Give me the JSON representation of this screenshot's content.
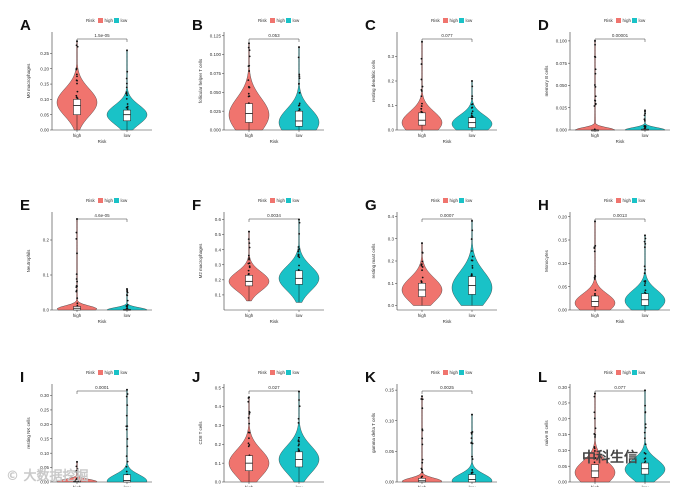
{
  "colors": {
    "high": "#F0746E",
    "low": "#19C2C7",
    "stroke": "#333333",
    "box": "#ffffff"
  },
  "legend": {
    "title": "Risk",
    "items": [
      "high",
      "low"
    ]
  },
  "xlabel": "Risk",
  "watermark_left": "© 大数据挖掘",
  "watermark_right": "中科生信",
  "chart_data": [
    {
      "type": "violin",
      "panel": "A",
      "ylabel": "M0 macrophages",
      "pvalue": "1.5e-05",
      "categories": [
        "high",
        "low"
      ],
      "ylim": [
        0,
        0.32
      ],
      "ticks": [
        0,
        0.05,
        0.1,
        0.15,
        0.2,
        0.25
      ],
      "tick_labels": [
        "0.00",
        "0.05",
        "0.10",
        "0.15",
        "0.20",
        "0.25"
      ],
      "series": [
        {
          "name": "high",
          "min": 0,
          "q1": 0.05,
          "median": 0.08,
          "q3": 0.1,
          "max": 0.29,
          "mode": 0.09
        },
        {
          "name": "low",
          "min": 0,
          "q1": 0.03,
          "median": 0.05,
          "q3": 0.065,
          "max": 0.26,
          "mode": 0.05
        }
      ]
    },
    {
      "type": "violin",
      "panel": "B",
      "ylabel": "follicular helper T cells",
      "pvalue": "0.053",
      "categories": [
        "high",
        "low"
      ],
      "ylim": [
        0,
        0.13
      ],
      "ticks": [
        0,
        0.025,
        0.05,
        0.075,
        0.1,
        0.125
      ],
      "tick_labels": [
        "0.000",
        "0.025",
        "0.050",
        "0.075",
        "0.100",
        "0.125"
      ],
      "series": [
        {
          "name": "high",
          "min": 0,
          "q1": 0.01,
          "median": 0.022,
          "q3": 0.035,
          "max": 0.115,
          "mode": 0.02
        },
        {
          "name": "low",
          "min": 0,
          "q1": 0.005,
          "median": 0.012,
          "q3": 0.025,
          "max": 0.11,
          "mode": 0.01
        }
      ]
    },
    {
      "type": "violin",
      "panel": "C",
      "ylabel": "resting dendritic cells",
      "pvalue": "0.077",
      "categories": [
        "high",
        "low"
      ],
      "ylim": [
        0,
        0.4
      ],
      "ticks": [
        0,
        0.1,
        0.2,
        0.3
      ],
      "tick_labels": [
        "0.0",
        "0.1",
        "0.2",
        "0.3"
      ],
      "series": [
        {
          "name": "high",
          "min": 0,
          "q1": 0.02,
          "median": 0.04,
          "q3": 0.07,
          "max": 0.36,
          "mode": 0.03
        },
        {
          "name": "low",
          "min": 0,
          "q1": 0.01,
          "median": 0.03,
          "q3": 0.05,
          "max": 0.2,
          "mode": 0.025
        }
      ]
    },
    {
      "type": "violin",
      "panel": "D",
      "ylabel": "memory B cells",
      "pvalue": "0.00001",
      "categories": [
        "high",
        "low"
      ],
      "ylim": [
        0,
        0.11
      ],
      "ticks": [
        0,
        0.025,
        0.05,
        0.075,
        0.1
      ],
      "tick_labels": [
        "0.000",
        "0.025",
        "0.050",
        "0.075",
        "0.100"
      ],
      "series": [
        {
          "name": "high",
          "min": 0,
          "q1": 0,
          "median": 0,
          "q3": 0,
          "max": 0.1,
          "mode": 0
        },
        {
          "name": "low",
          "min": 0,
          "q1": 0,
          "median": 0,
          "q3": 0.001,
          "max": 0.022,
          "mode": 0
        }
      ]
    },
    {
      "type": "violin",
      "panel": "E",
      "ylabel": "Neutrophils",
      "pvalue": "4.6e-05",
      "categories": [
        "high",
        "low"
      ],
      "ylim": [
        0,
        0.28
      ],
      "ticks": [
        0,
        0.1,
        0.2
      ],
      "tick_labels": [
        "0.0",
        "0.1",
        "0.2"
      ],
      "series": [
        {
          "name": "high",
          "min": 0,
          "q1": 0,
          "median": 0.005,
          "q3": 0.01,
          "max": 0.26,
          "mode": 0.003
        },
        {
          "name": "low",
          "min": 0,
          "q1": 0,
          "median": 0,
          "q3": 0.002,
          "max": 0.06,
          "mode": 0
        }
      ]
    },
    {
      "type": "violin",
      "panel": "F",
      "ylabel": "M2 macrophages",
      "pvalue": "0.0034",
      "categories": [
        "high",
        "low"
      ],
      "ylim": [
        0,
        0.65
      ],
      "ticks": [
        0.1,
        0.2,
        0.3,
        0.4,
        0.5,
        0.6
      ],
      "tick_labels": [
        "0.1",
        "0.2",
        "0.3",
        "0.4",
        "0.5",
        "0.6"
      ],
      "series": [
        {
          "name": "high",
          "min": 0.06,
          "q1": 0.16,
          "median": 0.19,
          "q3": 0.23,
          "max": 0.52,
          "mode": 0.19
        },
        {
          "name": "low",
          "min": 0.05,
          "q1": 0.17,
          "median": 0.21,
          "q3": 0.26,
          "max": 0.6,
          "mode": 0.21
        }
      ]
    },
    {
      "type": "violin",
      "panel": "G",
      "ylabel": "resting mast cells",
      "pvalue": "0.0007",
      "categories": [
        "high",
        "low"
      ],
      "ylim": [
        -0.02,
        0.42
      ],
      "ticks": [
        0,
        0.1,
        0.2,
        0.3,
        0.4
      ],
      "tick_labels": [
        "0.0",
        "0.1",
        "0.2",
        "0.3",
        "0.4"
      ],
      "series": [
        {
          "name": "high",
          "min": 0,
          "q1": 0.04,
          "median": 0.07,
          "q3": 0.1,
          "max": 0.28,
          "mode": 0.07
        },
        {
          "name": "low",
          "min": 0,
          "q1": 0.05,
          "median": 0.09,
          "q3": 0.13,
          "max": 0.38,
          "mode": 0.08
        }
      ]
    },
    {
      "type": "violin",
      "panel": "H",
      "ylabel": "Monocytes",
      "pvalue": "0.0013",
      "categories": [
        "high",
        "low"
      ],
      "ylim": [
        0,
        0.21
      ],
      "ticks": [
        0,
        0.05,
        0.1,
        0.15,
        0.2
      ],
      "tick_labels": [
        "0.00",
        "0.05",
        "0.10",
        "0.15",
        "0.20"
      ],
      "series": [
        {
          "name": "high",
          "min": 0,
          "q1": 0.008,
          "median": 0.018,
          "q3": 0.03,
          "max": 0.19,
          "mode": 0.015
        },
        {
          "name": "low",
          "min": 0,
          "q1": 0.01,
          "median": 0.022,
          "q3": 0.035,
          "max": 0.16,
          "mode": 0.02
        }
      ]
    },
    {
      "type": "violin",
      "panel": "I",
      "ylabel": "resting NK cells",
      "pvalue": "0.0001",
      "categories": [
        "high",
        "low"
      ],
      "ylim": [
        0,
        0.34
      ],
      "ticks": [
        0,
        0.05,
        0.1,
        0.15,
        0.2,
        0.25,
        0.3
      ],
      "tick_labels": [
        "0.00",
        "0.05",
        "0.10",
        "0.15",
        "0.20",
        "0.25",
        "0.30"
      ],
      "series": [
        {
          "name": "high",
          "min": 0,
          "q1": 0,
          "median": 0.002,
          "q3": 0.005,
          "max": 0.07,
          "mode": 0.001
        },
        {
          "name": "low",
          "min": 0,
          "q1": 0,
          "median": 0.005,
          "q3": 0.025,
          "max": 0.32,
          "mode": 0.003
        }
      ]
    },
    {
      "type": "violin",
      "panel": "J",
      "ylabel": "CD8 T cells",
      "pvalue": "0.027",
      "categories": [
        "high",
        "low"
      ],
      "ylim": [
        0,
        0.52
      ],
      "ticks": [
        0,
        0.1,
        0.2,
        0.3,
        0.4,
        0.5
      ],
      "tick_labels": [
        "0.0",
        "0.1",
        "0.2",
        "0.3",
        "0.4",
        "0.5"
      ],
      "series": [
        {
          "name": "high",
          "min": 0,
          "q1": 0.06,
          "median": 0.1,
          "q3": 0.14,
          "max": 0.45,
          "mode": 0.1
        },
        {
          "name": "low",
          "min": 0,
          "q1": 0.08,
          "median": 0.12,
          "q3": 0.16,
          "max": 0.48,
          "mode": 0.12
        }
      ]
    },
    {
      "type": "violin",
      "panel": "K",
      "ylabel": "gamma delta T cells",
      "pvalue": "0.0025",
      "categories": [
        "high",
        "low"
      ],
      "ylim": [
        0,
        0.16
      ],
      "ticks": [
        0,
        0.05,
        0.1,
        0.15
      ],
      "tick_labels": [
        "0.00",
        "0.05",
        "0.10",
        "0.15"
      ],
      "series": [
        {
          "name": "high",
          "min": 0,
          "q1": 0,
          "median": 0.002,
          "q3": 0.006,
          "max": 0.14,
          "mode": 0.001
        },
        {
          "name": "low",
          "min": 0,
          "q1": 0,
          "median": 0.004,
          "q3": 0.012,
          "max": 0.11,
          "mode": 0.002
        }
      ]
    },
    {
      "type": "violin",
      "panel": "L",
      "ylabel": "naive B cells",
      "pvalue": "0.077",
      "categories": [
        "high",
        "low"
      ],
      "ylim": [
        0,
        0.31
      ],
      "ticks": [
        0,
        0.05,
        0.1,
        0.15,
        0.2,
        0.25,
        0.3
      ],
      "tick_labels": [
        "0.00",
        "0.05",
        "0.10",
        "0.15",
        "0.20",
        "0.25",
        "0.30"
      ],
      "series": [
        {
          "name": "high",
          "min": 0,
          "q1": 0.015,
          "median": 0.035,
          "q3": 0.055,
          "max": 0.28,
          "mode": 0.03
        },
        {
          "name": "low",
          "min": 0,
          "q1": 0.025,
          "median": 0.042,
          "q3": 0.06,
          "max": 0.29,
          "mode": 0.04
        }
      ]
    }
  ]
}
